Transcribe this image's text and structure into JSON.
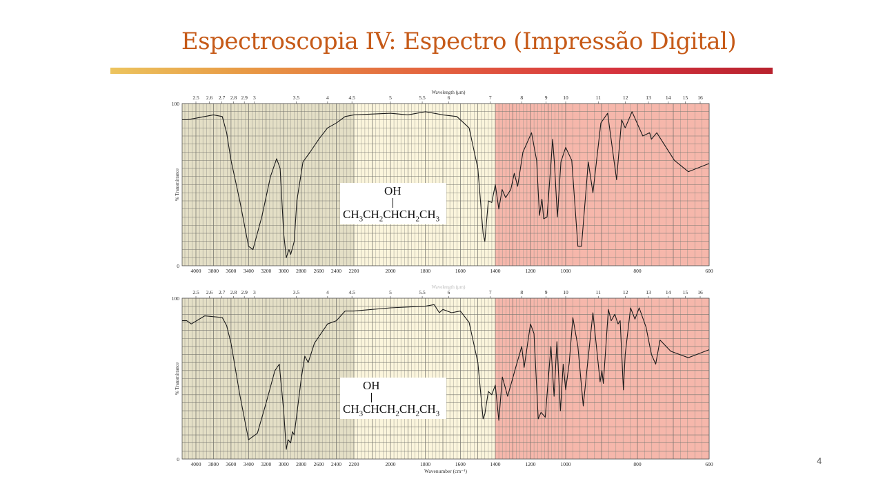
{
  "slide": {
    "title": "Espectroscopia IV: Espectro (Impressão Digital)",
    "page_number": "4",
    "accent_colors": [
      "#ecc45e",
      "#e3603e",
      "#b8222e"
    ],
    "title_color": "#c65a18"
  },
  "chart_data": [
    {
      "type": "line",
      "title": "",
      "xlabel": "",
      "top_xlabel": "Wavelength (μm)",
      "ylabel": "% Transmittance",
      "xlim": [
        4150,
        600
      ],
      "ylim": [
        0,
        100
      ],
      "y_ticks": [
        "100",
        "0"
      ],
      "x_ticks": [
        4000,
        3800,
        3600,
        3400,
        3200,
        3000,
        2800,
        2600,
        2400,
        2200,
        2000,
        1800,
        1600,
        1400,
        1200,
        1000,
        800,
        600
      ],
      "top_ticks": [
        2.5,
        2.6,
        2.7,
        2.8,
        2.9,
        3,
        3.5,
        4,
        4.5,
        5,
        5.5,
        6,
        7,
        8,
        9,
        10,
        11,
        12,
        13,
        14,
        15,
        16
      ],
      "grid": true,
      "region_colors": {
        "high": "#e4dfc6",
        "mid": "#fbf5dc",
        "fingerprint": "#f6b7ab"
      },
      "structure": {
        "substituent": "OH",
        "formula": "CH3CH2CHCH2CH3"
      },
      "series": [
        {
          "x": [
            4150,
            4100,
            4000,
            3900,
            3800,
            3700,
            3650,
            3600,
            3500,
            3400,
            3350,
            3250,
            3150,
            3080,
            3040,
            3000,
            2970,
            2940,
            2920,
            2880,
            2850,
            2780,
            2700,
            2600,
            2500,
            2400,
            2300,
            2200,
            2000,
            1900,
            1800,
            1700,
            1620,
            1550,
            1500,
            1470,
            1460,
            1440,
            1420,
            1400,
            1380,
            1361,
            1341,
            1312,
            1292,
            1273,
            1243,
            1194,
            1165,
            1149,
            1135,
            1125,
            1106,
            1086,
            1074,
            1063,
            1047,
            1027,
            1000,
            983,
            966,
            956,
            937,
            924,
            902,
            883,
            858,
            844,
            834,
            815,
            785,
            766,
            761,
            746,
            697,
            658,
            600
          ],
          "y": [
            90,
            90,
            91,
            92,
            93,
            92,
            82,
            65,
            40,
            12,
            10,
            30,
            55,
            66,
            60,
            20,
            5,
            10,
            7,
            15,
            40,
            64,
            70,
            78,
            85,
            88,
            92,
            93,
            94,
            93,
            95,
            93,
            92,
            85,
            60,
            20,
            15,
            40,
            39,
            50,
            35,
            47,
            42,
            47,
            57,
            49,
            70,
            82,
            65,
            31,
            41,
            29,
            30,
            60,
            78,
            62,
            30,
            64,
            73,
            65,
            12,
            12,
            64,
            45,
            88,
            94,
            53,
            90,
            85,
            95,
            80,
            82,
            78,
            82,
            65,
            58,
            63
          ]
        }
      ]
    },
    {
      "type": "line",
      "title": "",
      "xlabel": "Wavenumber (cm⁻¹)",
      "top_xlabel": "Wavelength (μm)",
      "ylabel": "% Transmittance",
      "xlim": [
        4150,
        600
      ],
      "ylim": [
        0,
        100
      ],
      "y_ticks": [
        "100",
        "0"
      ],
      "x_ticks": [
        4000,
        3800,
        3600,
        3400,
        3200,
        3000,
        2800,
        2600,
        2400,
        2200,
        2000,
        1800,
        1600,
        1400,
        1200,
        1000,
        800,
        600
      ],
      "top_ticks": [
        2.5,
        2.6,
        2.7,
        2.8,
        2.9,
        3,
        3.5,
        4,
        4.5,
        5,
        5.5,
        6,
        7,
        8,
        9,
        10,
        11,
        12,
        13,
        14,
        15,
        16
      ],
      "grid": true,
      "region_colors": {
        "high": "#e4dfc6",
        "mid": "#fbf5dc",
        "fingerprint": "#f6b7ab"
      },
      "structure": {
        "substituent": "OH",
        "formula": "CH3CHCH2CH2CH3"
      },
      "series": [
        {
          "x": [
            4150,
            4100,
            4050,
            3900,
            3700,
            3650,
            3600,
            3500,
            3400,
            3300,
            3200,
            3100,
            3050,
            3000,
            2970,
            2950,
            2920,
            2900,
            2880,
            2800,
            2760,
            2720,
            2650,
            2500,
            2400,
            2300,
            2200,
            2000,
            1800,
            1750,
            1720,
            1700,
            1650,
            1600,
            1550,
            1500,
            1470,
            1460,
            1440,
            1420,
            1400,
            1380,
            1360,
            1330,
            1284,
            1250,
            1236,
            1200,
            1180,
            1156,
            1140,
            1116,
            1084,
            1066,
            1050,
            1030,
            1014,
            1000,
            990,
            980,
            966,
            951,
            941,
            924,
            912,
            904,
            899,
            895,
            881,
            873,
            863,
            854,
            848,
            839,
            834,
            819,
            807,
            795,
            776,
            761,
            749,
            737,
            707,
            658,
            600
          ],
          "y": [
            86,
            86,
            84,
            89,
            88,
            83,
            72,
            40,
            12,
            16,
            35,
            55,
            59,
            30,
            6,
            12,
            10,
            17,
            15,
            50,
            64,
            60,
            72,
            84,
            86,
            92,
            92,
            94,
            95,
            96,
            91,
            93,
            91,
            92,
            85,
            60,
            25,
            28,
            42,
            40,
            46,
            24,
            51,
            39,
            57,
            70,
            57,
            84,
            78,
            25,
            29,
            26,
            70,
            39,
            73,
            30,
            59,
            43,
            60,
            88,
            70,
            33,
            55,
            91,
            65,
            48,
            55,
            47,
            93,
            86,
            90,
            84,
            86,
            43,
            65,
            94,
            87,
            94,
            82,
            65,
            59,
            74,
            67,
            63,
            68
          ]
        }
      ]
    }
  ]
}
